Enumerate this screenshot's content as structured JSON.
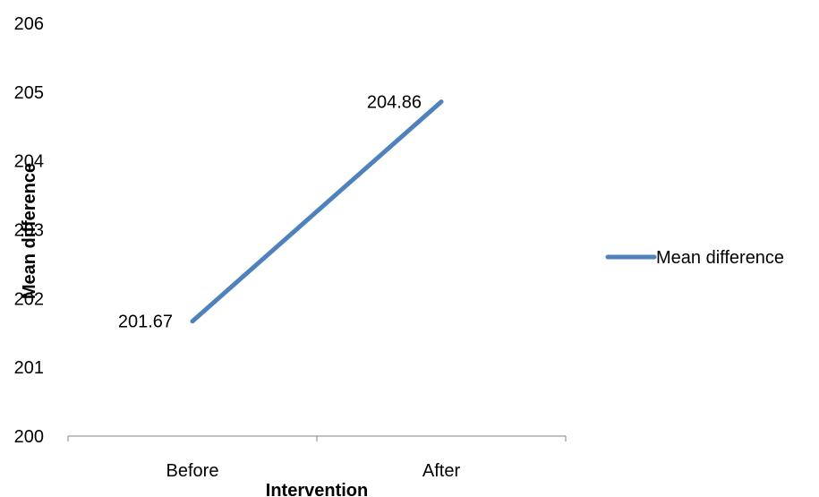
{
  "chart_data": {
    "type": "line",
    "categories": [
      "Before",
      "After"
    ],
    "series": [
      {
        "name": "Mean difference",
        "values": [
          201.67,
          204.86
        ],
        "color": "#4F81BD"
      }
    ],
    "data_labels": [
      "201.67",
      "204.86"
    ],
    "xlabel": "Intervention",
    "ylabel": "Mean difference",
    "ylim": [
      200,
      206
    ],
    "yticks": [
      200,
      201,
      202,
      203,
      204,
      205,
      206
    ],
    "grid": false,
    "legend": "right"
  }
}
